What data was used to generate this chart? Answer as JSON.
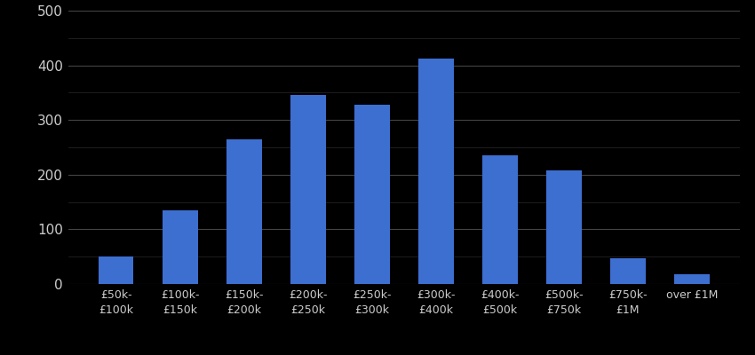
{
  "categories": [
    "£50k-\n£100k",
    "£100k-\n£150k",
    "£150k-\n£200k",
    "£200k-\n£250k",
    "£250k-\n£300k",
    "£300k-\n£400k",
    "£400k-\n£500k",
    "£500k-\n£750k",
    "£750k-\n£1M",
    "over £1M"
  ],
  "values": [
    50,
    135,
    265,
    345,
    328,
    412,
    235,
    208,
    47,
    18
  ],
  "bar_color": "#3d6fd1",
  "background_color": "#000000",
  "text_color": "#cccccc",
  "grid_color": "#444444",
  "minor_grid_color": "#222222",
  "ylim": [
    0,
    500
  ],
  "yticks": [
    0,
    100,
    200,
    300,
    400,
    500
  ],
  "yticks_minor": [
    50,
    150,
    250,
    350,
    450
  ],
  "tick_fontsize": 11,
  "label_fontsize": 9,
  "bar_width": 0.55
}
